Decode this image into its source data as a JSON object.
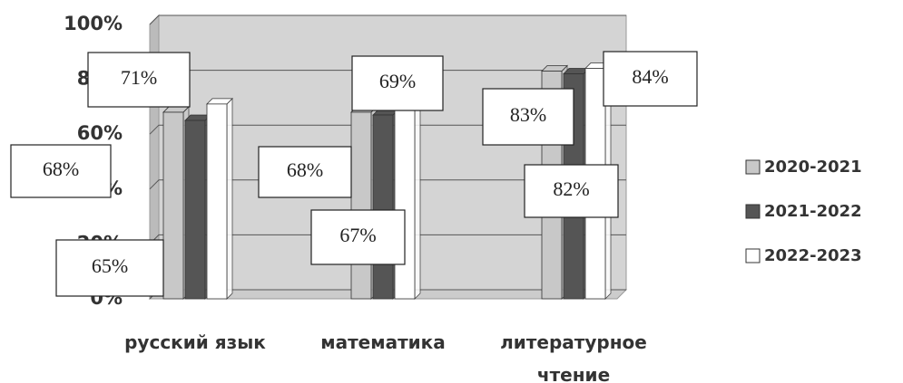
{
  "chart_data": {
    "type": "bar",
    "categories": [
      "русский язык",
      "математика",
      "литературное чтение"
    ],
    "series": [
      {
        "name": "2020-2021",
        "color": "#c8c8c8",
        "values": [
          68,
          68,
          83
        ],
        "value_labels": [
          "68%",
          "68%",
          "83%"
        ]
      },
      {
        "name": "2021-2022",
        "color": "#555555",
        "values": [
          65,
          67,
          82
        ],
        "value_labels": [
          "65%",
          "67%",
          "82%"
        ]
      },
      {
        "name": "2022-2023",
        "color": "#ffffff",
        "values": [
          71,
          69,
          84
        ],
        "value_labels": [
          "71%",
          "69%",
          "84%"
        ]
      }
    ],
    "ylim": [
      0,
      100
    ],
    "yticks": [
      {
        "value": 0,
        "label": "0%"
      },
      {
        "value": 20,
        "label": "20%"
      },
      {
        "value": 40,
        "label": "40%"
      },
      {
        "value": 60,
        "label": "60%"
      },
      {
        "value": 80,
        "label": "80%"
      },
      {
        "value": 100,
        "label": "100%"
      }
    ],
    "grid": true,
    "legend": "right"
  }
}
